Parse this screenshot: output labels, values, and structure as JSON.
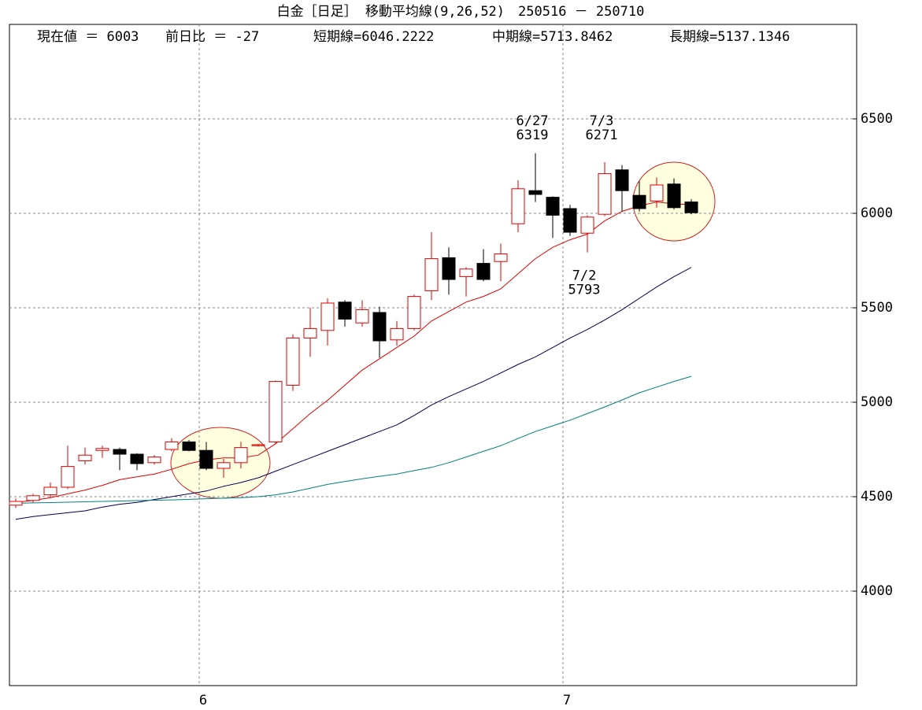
{
  "chart_data": {
    "type": "candlestick",
    "title": "白金［日足］ 移動平均線(9,26,52)　250516 － 250710",
    "header": [
      "現在値 ＝ 6003",
      "前日比 ＝ -27",
      "短期線=6046.2222",
      "中期線=5713.8462",
      "長期線=5137.1346"
    ],
    "categories": [
      null,
      null,
      null,
      null,
      null,
      null,
      null,
      null,
      null,
      null,
      null,
      "6",
      null,
      null,
      null,
      null,
      null,
      null,
      null,
      null,
      null,
      null,
      null,
      null,
      null,
      null,
      null,
      null,
      null,
      null,
      null,
      null,
      "7",
      null,
      null,
      null,
      null,
      null,
      null,
      null
    ],
    "open": [
      4455,
      4480,
      4510,
      4550,
      4690,
      4745,
      4750,
      4725,
      4680,
      4750,
      4790,
      4745,
      4650,
      4680,
      4770,
      4790,
      5090,
      5340,
      5380,
      5530,
      5420,
      5475,
      5330,
      5390,
      5590,
      5765,
      5665,
      5735,
      5745,
      5945,
      6120,
      6085,
      6025,
      5895,
      5995,
      6230,
      6095,
      6065,
      6155,
      6060
    ],
    "high": [
      4490,
      4515,
      4575,
      4770,
      4760,
      4770,
      4760,
      4730,
      4720,
      4810,
      4800,
      4790,
      4700,
      4790,
      4780,
      5115,
      5360,
      5500,
      5550,
      5540,
      5540,
      5505,
      5430,
      5570,
      5900,
      5820,
      5715,
      5810,
      5840,
      6175,
      6319,
      6090,
      6045,
      5990,
      6271,
      6255,
      6170,
      6190,
      6185,
      6075
    ],
    "low": [
      4440,
      4470,
      4495,
      4540,
      4670,
      4705,
      4640,
      4640,
      4670,
      4740,
      4740,
      4640,
      4600,
      4650,
      4765,
      4780,
      5060,
      5240,
      5300,
      5400,
      5400,
      5235,
      5300,
      5380,
      5540,
      5570,
      5560,
      5640,
      5640,
      5900,
      6060,
      5870,
      5880,
      5793,
      5985,
      6010,
      6010,
      6030,
      6020,
      5995
    ],
    "close": [
      4475,
      4505,
      4550,
      4660,
      4720,
      4755,
      4725,
      4675,
      4710,
      4790,
      4745,
      4650,
      4680,
      4760,
      4775,
      5110,
      5340,
      5390,
      5525,
      5440,
      5490,
      5325,
      5390,
      5560,
      5760,
      5650,
      5705,
      5650,
      5785,
      6130,
      6100,
      5990,
      5900,
      5980,
      6210,
      6120,
      6025,
      6150,
      6030,
      6003
    ],
    "up_color": "#e00000",
    "down_color": "#000000",
    "series": [
      {
        "color": "#e00000",
        "values": [
          4470,
          4480,
          4495,
          4515,
          4535,
          4560,
          4590,
          4605,
          4620,
          4645,
          4675,
          4695,
          4705,
          4705,
          4720,
          4780,
          4860,
          4940,
          5010,
          5090,
          5170,
          5230,
          5290,
          5350,
          5430,
          5480,
          5530,
          5560,
          5600,
          5680,
          5760,
          5820,
          5860,
          5890,
          5960,
          6010,
          6040,
          6060,
          6050,
          6046
        ]
      },
      {
        "color": "#000050",
        "values": [
          4380,
          4395,
          4405,
          4415,
          4425,
          4445,
          4460,
          4470,
          4485,
          4500,
          4515,
          4530,
          4555,
          4575,
          4600,
          4635,
          4670,
          4705,
          4740,
          4775,
          4810,
          4845,
          4880,
          4930,
          4985,
          5030,
          5070,
          5110,
          5155,
          5200,
          5240,
          5290,
          5340,
          5385,
          5435,
          5490,
          5550,
          5610,
          5665,
          5714
        ]
      },
      {
        "color": "#008080",
        "values": [
          4465,
          4467,
          4469,
          4471,
          4473,
          4475,
          4477,
          4479,
          4481,
          4483,
          4486,
          4489,
          4492,
          4495,
          4500,
          4510,
          4525,
          4545,
          4565,
          4580,
          4595,
          4608,
          4620,
          4638,
          4655,
          4680,
          4710,
          4740,
          4770,
          4808,
          4845,
          4875,
          4905,
          4940,
          4975,
          5012,
          5050,
          5080,
          5110,
          5137
        ]
      }
    ],
    "annotations": [
      "6/27",
      "7/3",
      "7/2"
    ],
    "ylim": [
      3500,
      7000
    ],
    "yticks": [
      4000,
      4500,
      5000,
      5500,
      6000,
      6500
    ],
    "grid": true
  }
}
